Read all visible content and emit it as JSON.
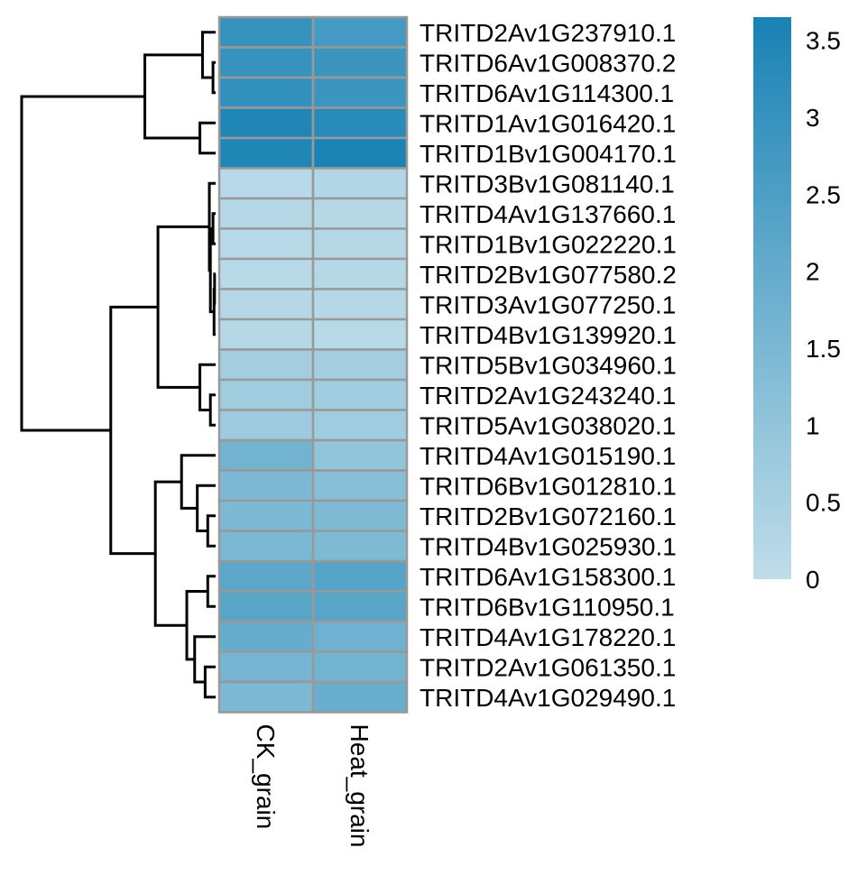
{
  "chart_data": {
    "type": "heatmap",
    "title": "",
    "columns": [
      "CK_grain",
      "Heat_grain"
    ],
    "rows": [
      "TRITD2Av1G237910.1",
      "TRITD6Av1G008370.2",
      "TRITD6Av1G114300.1",
      "TRITD1Av1G016420.1",
      "TRITD1Bv1G004170.1",
      "TRITD3Bv1G081140.1",
      "TRITD4Av1G137660.1",
      "TRITD1Bv1G022220.1",
      "TRITD2Bv1G077580.2",
      "TRITD3Av1G077250.1",
      "TRITD4Bv1G139920.1",
      "TRITD5Bv1G034960.1",
      "TRITD2Av1G243240.1",
      "TRITD5Av1G038020.1",
      "TRITD4Av1G015190.1",
      "TRITD6Bv1G012810.1",
      "TRITD2Bv1G072160.1",
      "TRITD4Bv1G025930.1",
      "TRITD6Av1G158300.1",
      "TRITD6Bv1G110950.1",
      "TRITD4Av1G178220.1",
      "TRITD2Av1G061350.1",
      "TRITD4Av1G029490.1"
    ],
    "values": [
      [
        3.0,
        2.7
      ],
      [
        3.0,
        2.9
      ],
      [
        3.1,
        2.9
      ],
      [
        3.5,
        3.3
      ],
      [
        3.5,
        3.6
      ],
      [
        0.15,
        0.3
      ],
      [
        0.2,
        0.2
      ],
      [
        0.15,
        0.2
      ],
      [
        0.15,
        0.2
      ],
      [
        0.2,
        0.2
      ],
      [
        0.2,
        0.15
      ],
      [
        0.6,
        0.6
      ],
      [
        0.7,
        0.65
      ],
      [
        0.75,
        0.7
      ],
      [
        1.7,
        1.0
      ],
      [
        1.45,
        1.2
      ],
      [
        1.45,
        1.4
      ],
      [
        1.5,
        1.4
      ],
      [
        2.2,
        2.3
      ],
      [
        2.25,
        2.25
      ],
      [
        1.95,
        1.75
      ],
      [
        1.6,
        1.7
      ],
      [
        1.45,
        1.9
      ]
    ],
    "color_scale": {
      "min": 0,
      "max": 3.65,
      "low_color": "#bfdde9",
      "high_color": "#1982b4"
    },
    "legend": {
      "ticks": [
        0,
        0.5,
        1,
        1.5,
        2,
        2.5,
        3,
        3.5
      ],
      "tick_labels": [
        "0",
        "0.5",
        "1",
        "1.5",
        "2",
        "2.5",
        "3",
        "3.5"
      ],
      "placement": "right"
    },
    "row_dendrogram": [
      {
        "a": 1,
        "b": 2,
        "h": 0.05
      },
      {
        "a": 0,
        "b": 23,
        "h": 0.25
      },
      {
        "a": 3,
        "b": 4,
        "h": 0.3
      },
      {
        "a": 24,
        "b": 25,
        "h": 1.35
      },
      {
        "a": 8,
        "b": 9,
        "h": 0.02
      },
      {
        "a": 27,
        "b": 10,
        "h": 0.03
      },
      {
        "a": 6,
        "b": 7,
        "h": 0.05
      },
      {
        "a": 29,
        "b": 28,
        "h": 0.1
      },
      {
        "a": 5,
        "b": 30,
        "h": 0.12
      },
      {
        "a": 12,
        "b": 13,
        "h": 0.1
      },
      {
        "a": 11,
        "b": 32,
        "h": 0.3
      },
      {
        "a": 31,
        "b": 33,
        "h": 1.1
      },
      {
        "a": 16,
        "b": 17,
        "h": 0.15
      },
      {
        "a": 15,
        "b": 35,
        "h": 0.35
      },
      {
        "a": 14,
        "b": 36,
        "h": 0.65
      },
      {
        "a": 18,
        "b": 19,
        "h": 0.15
      },
      {
        "a": 21,
        "b": 22,
        "h": 0.2
      },
      {
        "a": 20,
        "b": 39,
        "h": 0.4
      },
      {
        "a": 38,
        "b": 40,
        "h": 0.55
      },
      {
        "a": 37,
        "b": 41,
        "h": 1.15
      },
      {
        "a": 34,
        "b": 42,
        "h": 2.0
      },
      {
        "a": 26,
        "b": 43,
        "h": 3.7
      }
    ],
    "row_dendrogram_max_height": 3.7
  }
}
